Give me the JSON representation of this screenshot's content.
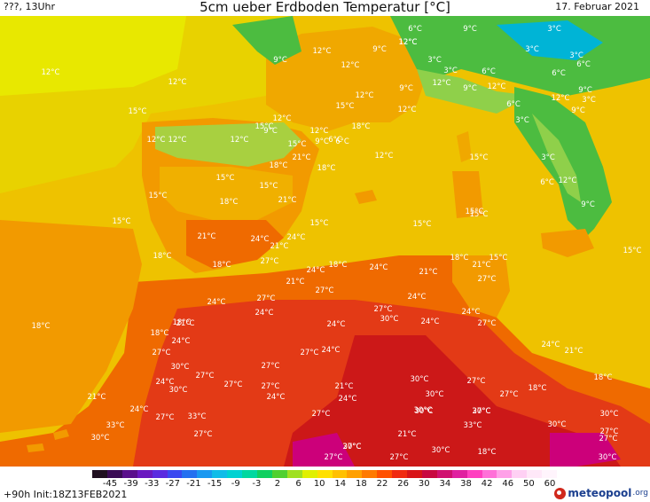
{
  "header": {
    "left": "???, 13Uhr",
    "title": "5cm ueber Erdboden Temperatur [°C]",
    "date": "17. Februar 2021"
  },
  "map": {
    "region": "Western Mediterranean (Iberia, France, Italy, NW Africa)",
    "colors": {
      "sea": "#eec200",
      "water_north": "#e6e000",
      "orange_land": "#f29a00",
      "hot_orange": "#ef6a00",
      "red": "#e33a16",
      "deep_red": "#cc1818",
      "magenta": "#cc007a",
      "green": "#4cbc40",
      "light_green": "#8fd04a",
      "cyan": "#00b4d6"
    },
    "labels": [
      {
        "t": "12°C"
      },
      {
        "t": "12°C"
      },
      {
        "t": "12°C"
      },
      {
        "t": "9°C"
      },
      {
        "t": "12°C"
      },
      {
        "t": "12°C"
      },
      {
        "t": "9°C"
      },
      {
        "t": "6°C"
      },
      {
        "t": "12°C"
      },
      {
        "t": "9°C"
      },
      {
        "t": "3°C"
      },
      {
        "t": "3°C"
      },
      {
        "t": "3°C"
      },
      {
        "t": "6°C"
      },
      {
        "t": "6°C"
      },
      {
        "t": "3°C"
      },
      {
        "t": "3°C"
      },
      {
        "t": "6°C"
      },
      {
        "t": "12°C"
      },
      {
        "t": "9°C"
      },
      {
        "t": "12°C"
      },
      {
        "t": "15°C"
      },
      {
        "t": "9°C"
      },
      {
        "t": "12°C"
      },
      {
        "t": "12°C"
      },
      {
        "t": "9°C"
      },
      {
        "t": "6°C"
      },
      {
        "t": "12°C"
      },
      {
        "t": "3°C"
      },
      {
        "t": "12°C"
      },
      {
        "t": "9°C"
      },
      {
        "t": "3°C"
      },
      {
        "t": "9°C"
      },
      {
        "t": "15°C"
      },
      {
        "t": "12°C"
      },
      {
        "t": "18°C"
      },
      {
        "t": "12°C"
      },
      {
        "t": "15°C"
      },
      {
        "t": "12°C"
      },
      {
        "t": "6°C"
      },
      {
        "t": "9°C"
      },
      {
        "t": "6°C"
      },
      {
        "t": "12°C"
      },
      {
        "t": "15°C"
      },
      {
        "t": "12°C"
      },
      {
        "t": "3°C"
      },
      {
        "t": "21°C"
      },
      {
        "t": "18°C"
      },
      {
        "t": "18°C"
      },
      {
        "t": "15°C"
      },
      {
        "t": "15°C"
      },
      {
        "t": "15°C"
      },
      {
        "t": "21°C"
      },
      {
        "t": "15°C"
      },
      {
        "t": "18°C"
      },
      {
        "t": "6°C"
      },
      {
        "t": "12°C"
      },
      {
        "t": "9°C"
      },
      {
        "t": "15°C"
      },
      {
        "t": "15°C"
      },
      {
        "t": "15°C"
      },
      {
        "t": "21°C"
      },
      {
        "t": "24°C"
      },
      {
        "t": "24°C"
      },
      {
        "t": "15°C"
      },
      {
        "t": "15°C"
      },
      {
        "t": "15°C"
      },
      {
        "t": "18°C"
      },
      {
        "t": "27°C"
      },
      {
        "t": "21°C"
      },
      {
        "t": "18°C"
      },
      {
        "t": "24°C"
      },
      {
        "t": "18°C"
      },
      {
        "t": "15°C"
      },
      {
        "t": "18°C"
      },
      {
        "t": "21°C"
      },
      {
        "t": "21°C"
      },
      {
        "t": "24°C"
      },
      {
        "t": "21°C"
      },
      {
        "t": "27°C"
      },
      {
        "t": "27°C"
      },
      {
        "t": "24°C"
      },
      {
        "t": "27°C"
      },
      {
        "t": "24°C"
      },
      {
        "t": "27°C"
      },
      {
        "t": "24°C"
      },
      {
        "t": "18°C"
      },
      {
        "t": "27°C"
      },
      {
        "t": "30°C"
      },
      {
        "t": "24°C"
      },
      {
        "t": "24°C"
      },
      {
        "t": "24°C"
      },
      {
        "t": "18°C"
      },
      {
        "t": "21°C"
      },
      {
        "t": "18°C"
      },
      {
        "t": "24°C"
      },
      {
        "t": "24°C"
      },
      {
        "t": "27°C"
      },
      {
        "t": "24°C"
      },
      {
        "t": "21°C"
      },
      {
        "t": "27°C"
      },
      {
        "t": "30°C"
      },
      {
        "t": "27°C"
      },
      {
        "t": "27°C"
      },
      {
        "t": "18°C"
      },
      {
        "t": "27°C"
      },
      {
        "t": "24°C"
      },
      {
        "t": "30°C"
      },
      {
        "t": "27°C"
      },
      {
        "t": "24°C"
      },
      {
        "t": "21°C"
      },
      {
        "t": "30°C"
      },
      {
        "t": "30°C"
      },
      {
        "t": "27°C"
      },
      {
        "t": "24°C"
      },
      {
        "t": "21°C"
      },
      {
        "t": "24°C"
      },
      {
        "t": "27°C"
      },
      {
        "t": "30°C"
      },
      {
        "t": "27°C"
      },
      {
        "t": "18°C"
      },
      {
        "t": "30°C"
      },
      {
        "t": "27°C"
      },
      {
        "t": "33°C"
      },
      {
        "t": "30°C"
      },
      {
        "t": "30°C"
      },
      {
        "t": "33°C"
      },
      {
        "t": "30°C"
      },
      {
        "t": "33°C"
      },
      {
        "t": "27°C"
      },
      {
        "t": "27°C"
      },
      {
        "t": "21°C"
      },
      {
        "t": "27°C"
      },
      {
        "t": "30°C"
      },
      {
        "t": "30°C"
      },
      {
        "t": "30°C"
      },
      {
        "t": "18°C"
      },
      {
        "t": "27°C"
      },
      {
        "t": "27°C"
      },
      {
        "t": "27°C"
      },
      {
        "t": "27°C"
      },
      {
        "t": "30°C"
      },
      {
        "t": "24°C"
      },
      {
        "t": "33°C"
      },
      {
        "t": "33°C"
      },
      {
        "t": "33°C"
      }
    ]
  },
  "scale": {
    "colors": [
      "#201020",
      "#3a0a55",
      "#5a0f8c",
      "#6a18c0",
      "#5a2ae0",
      "#3a48f0",
      "#2470f0",
      "#1a98f0",
      "#10bce8",
      "#00d2d2",
      "#00d8a0",
      "#10d060",
      "#50d030",
      "#a0e020",
      "#e0f000",
      "#ffe000",
      "#ffc000",
      "#ffa000",
      "#ff7a00",
      "#ff5000",
      "#f02a10",
      "#d81418",
      "#c80840",
      "#d01070",
      "#e020a0",
      "#ff40c0",
      "#ff70d8",
      "#ffa0e8",
      "#ffd0f4",
      "#ffe8f8",
      "#fff4fc"
    ],
    "labels": [
      "-45",
      "-39",
      "-33",
      "-27",
      "-21",
      "-15",
      "-9",
      "-3",
      "2",
      "6",
      "10",
      "14",
      "18",
      "22",
      "26",
      "30",
      "34",
      "38",
      "42",
      "46",
      "50",
      "60"
    ]
  },
  "footer": {
    "init": "+90h  Init:18Z13FEB2021",
    "logo_main": "meteopool",
    "logo_suffix": ".org"
  }
}
